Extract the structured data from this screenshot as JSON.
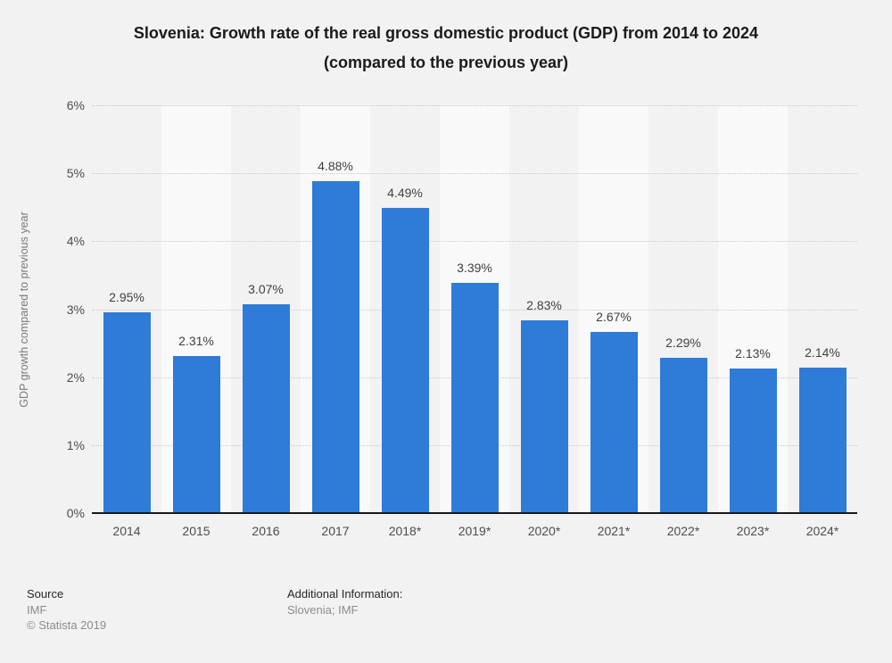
{
  "title": {
    "line1": "Slovenia: Growth rate of the real gross domestic product (GDP) from 2014 to 2024",
    "line2": "(compared to the previous year)"
  },
  "chart_data": {
    "type": "bar",
    "title": "Slovenia: Growth rate of the real gross domestic product (GDP) from 2014 to 2024 (compared to the previous year)",
    "categories": [
      "2014",
      "2015",
      "2016",
      "2017",
      "2018*",
      "2019*",
      "2020*",
      "2021*",
      "2022*",
      "2023*",
      "2024*"
    ],
    "values": [
      2.95,
      2.31,
      3.07,
      4.88,
      4.49,
      3.39,
      2.83,
      2.67,
      2.29,
      2.13,
      2.14
    ],
    "value_labels": [
      "2.95%",
      "2.31%",
      "3.07%",
      "4.88%",
      "4.49%",
      "3.39%",
      "2.83%",
      "2.67%",
      "2.29%",
      "2.13%",
      "2.14%"
    ],
    "xlabel": "",
    "ylabel": "GDP growth compared to previous year",
    "ylim": [
      0,
      6
    ],
    "ytick_labels": [
      "0%",
      "1%",
      "2%",
      "3%",
      "4%",
      "5%",
      "6%"
    ],
    "grid": "horizontal-dotted",
    "legend": "none",
    "bar_color": "#2e7bd8",
    "band_alternation": "column bands alternate gray/white starting gray"
  },
  "footer": {
    "source_label": "Source",
    "source_value": "IMF",
    "copyright": "© Statista 2019",
    "additional_label": "Additional Information:",
    "additional_value": "Slovenia; IMF"
  }
}
